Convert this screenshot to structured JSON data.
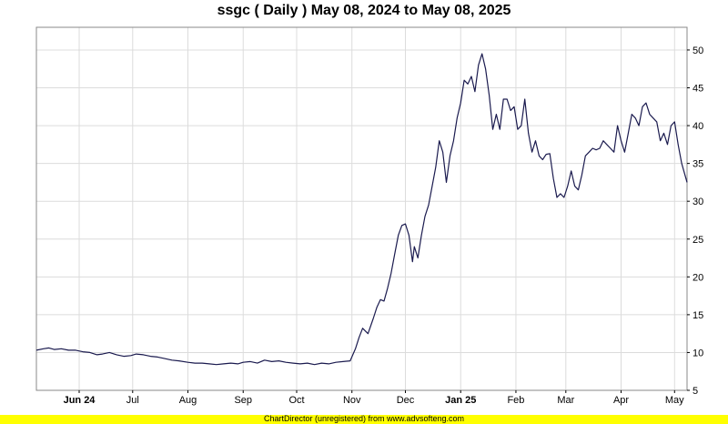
{
  "title": "ssgc ( Daily ) May 08, 2024 to May 08, 2025",
  "footer": "ChartDirector (unregistered) from www.advsofteng.com",
  "colors": {
    "line": "#1a1a4e",
    "grid": "#dcdcdc",
    "footer_bg": "#ffff00",
    "plot_border": "#888888"
  },
  "chart_data": {
    "type": "line",
    "title": "ssgc ( Daily ) May 08, 2024 to May 08, 2025",
    "xlabel": "",
    "ylabel": "",
    "ylim": [
      5,
      53
    ],
    "xlim": [
      "2024-05-08",
      "2025-05-08"
    ],
    "y_ticks": [
      5,
      10,
      15,
      20,
      25,
      30,
      35,
      40,
      45,
      50
    ],
    "x_ticks": [
      {
        "date": "2024-06-01",
        "label": "Jun 24",
        "bold": true
      },
      {
        "date": "2024-07-01",
        "label": "Jul",
        "bold": false
      },
      {
        "date": "2024-08-01",
        "label": "Aug",
        "bold": false
      },
      {
        "date": "2024-09-01",
        "label": "Sep",
        "bold": false
      },
      {
        "date": "2024-10-01",
        "label": "Oct",
        "bold": false
      },
      {
        "date": "2024-11-01",
        "label": "Nov",
        "bold": false
      },
      {
        "date": "2024-12-01",
        "label": "Dec",
        "bold": false
      },
      {
        "date": "2025-01-01",
        "label": "Jan 25",
        "bold": true
      },
      {
        "date": "2025-02-01",
        "label": "Feb",
        "bold": false
      },
      {
        "date": "2025-03-01",
        "label": "Mar",
        "bold": false
      },
      {
        "date": "2025-04-01",
        "label": "Apr",
        "bold": false
      },
      {
        "date": "2025-05-01",
        "label": "May",
        "bold": false
      }
    ],
    "grid": true,
    "y_axis_position": "right",
    "series": [
      {
        "points": [
          [
            "2024-05-08",
            10.3
          ],
          [
            "2024-05-12",
            10.5
          ],
          [
            "2024-05-15",
            10.6
          ],
          [
            "2024-05-18",
            10.4
          ],
          [
            "2024-05-22",
            10.5
          ],
          [
            "2024-05-26",
            10.3
          ],
          [
            "2024-05-30",
            10.3
          ],
          [
            "2024-06-03",
            10.1
          ],
          [
            "2024-06-07",
            10.0
          ],
          [
            "2024-06-11",
            9.7
          ],
          [
            "2024-06-14",
            9.8
          ],
          [
            "2024-06-18",
            10.0
          ],
          [
            "2024-06-22",
            9.7
          ],
          [
            "2024-06-26",
            9.5
          ],
          [
            "2024-06-30",
            9.6
          ],
          [
            "2024-07-03",
            9.8
          ],
          [
            "2024-07-07",
            9.7
          ],
          [
            "2024-07-11",
            9.5
          ],
          [
            "2024-07-15",
            9.4
          ],
          [
            "2024-07-19",
            9.2
          ],
          [
            "2024-07-23",
            9.0
          ],
          [
            "2024-07-27",
            8.9
          ],
          [
            "2024-08-01",
            8.7
          ],
          [
            "2024-08-05",
            8.6
          ],
          [
            "2024-08-09",
            8.6
          ],
          [
            "2024-08-13",
            8.5
          ],
          [
            "2024-08-17",
            8.4
          ],
          [
            "2024-08-21",
            8.5
          ],
          [
            "2024-08-25",
            8.6
          ],
          [
            "2024-08-29",
            8.5
          ],
          [
            "2024-09-01",
            8.7
          ],
          [
            "2024-09-05",
            8.8
          ],
          [
            "2024-09-09",
            8.6
          ],
          [
            "2024-09-13",
            9.0
          ],
          [
            "2024-09-17",
            8.8
          ],
          [
            "2024-09-21",
            8.9
          ],
          [
            "2024-09-25",
            8.7
          ],
          [
            "2024-09-29",
            8.6
          ],
          [
            "2024-10-03",
            8.5
          ],
          [
            "2024-10-07",
            8.6
          ],
          [
            "2024-10-11",
            8.4
          ],
          [
            "2024-10-15",
            8.6
          ],
          [
            "2024-10-19",
            8.5
          ],
          [
            "2024-10-23",
            8.7
          ],
          [
            "2024-10-27",
            8.8
          ],
          [
            "2024-10-31",
            8.9
          ],
          [
            "2024-11-03",
            10.5
          ],
          [
            "2024-11-05",
            12.0
          ],
          [
            "2024-11-07",
            13.2
          ],
          [
            "2024-11-10",
            12.5
          ],
          [
            "2024-11-13",
            14.5
          ],
          [
            "2024-11-15",
            16.0
          ],
          [
            "2024-11-17",
            17.0
          ],
          [
            "2024-11-19",
            16.8
          ],
          [
            "2024-11-21",
            18.5
          ],
          [
            "2024-11-23",
            20.5
          ],
          [
            "2024-11-25",
            23.0
          ],
          [
            "2024-11-27",
            25.5
          ],
          [
            "2024-11-29",
            26.8
          ],
          [
            "2024-12-01",
            27.0
          ],
          [
            "2024-12-03",
            25.5
          ],
          [
            "2024-12-05",
            22.0
          ],
          [
            "2024-12-06",
            24.0
          ],
          [
            "2024-12-08",
            22.5
          ],
          [
            "2024-12-10",
            25.5
          ],
          [
            "2024-12-12",
            28.0
          ],
          [
            "2024-12-14",
            29.5
          ],
          [
            "2024-12-16",
            32.0
          ],
          [
            "2024-12-18",
            34.5
          ],
          [
            "2024-12-20",
            38.0
          ],
          [
            "2024-12-22",
            36.5
          ],
          [
            "2024-12-24",
            32.5
          ],
          [
            "2024-12-26",
            36.0
          ],
          [
            "2024-12-28",
            38.0
          ],
          [
            "2024-12-30",
            41.0
          ],
          [
            "2025-01-01",
            43.0
          ],
          [
            "2025-01-03",
            46.0
          ],
          [
            "2025-01-05",
            45.5
          ],
          [
            "2025-01-07",
            46.5
          ],
          [
            "2025-01-09",
            44.5
          ],
          [
            "2025-01-11",
            48.0
          ],
          [
            "2025-01-13",
            49.5
          ],
          [
            "2025-01-15",
            47.5
          ],
          [
            "2025-01-17",
            44.0
          ],
          [
            "2025-01-19",
            39.5
          ],
          [
            "2025-01-21",
            41.5
          ],
          [
            "2025-01-23",
            39.5
          ],
          [
            "2025-01-25",
            43.5
          ],
          [
            "2025-01-27",
            43.5
          ],
          [
            "2025-01-29",
            42.0
          ],
          [
            "2025-01-31",
            42.5
          ],
          [
            "2025-02-02",
            39.5
          ],
          [
            "2025-02-04",
            40.0
          ],
          [
            "2025-02-06",
            43.5
          ],
          [
            "2025-02-08",
            39.0
          ],
          [
            "2025-02-10",
            36.5
          ],
          [
            "2025-02-12",
            38.0
          ],
          [
            "2025-02-14",
            36.0
          ],
          [
            "2025-02-16",
            35.5
          ],
          [
            "2025-02-18",
            36.2
          ],
          [
            "2025-02-20",
            36.3
          ],
          [
            "2025-02-22",
            33.0
          ],
          [
            "2025-02-24",
            30.5
          ],
          [
            "2025-02-26",
            31.0
          ],
          [
            "2025-02-28",
            30.5
          ],
          [
            "2025-03-02",
            32.0
          ],
          [
            "2025-03-04",
            34.0
          ],
          [
            "2025-03-06",
            32.0
          ],
          [
            "2025-03-08",
            31.5
          ],
          [
            "2025-03-10",
            33.5
          ],
          [
            "2025-03-12",
            36.0
          ],
          [
            "2025-03-14",
            36.5
          ],
          [
            "2025-03-16",
            37.0
          ],
          [
            "2025-03-18",
            36.8
          ],
          [
            "2025-03-20",
            37.0
          ],
          [
            "2025-03-22",
            38.0
          ],
          [
            "2025-03-24",
            37.5
          ],
          [
            "2025-03-26",
            37.0
          ],
          [
            "2025-03-28",
            36.5
          ],
          [
            "2025-03-30",
            40.0
          ],
          [
            "2025-04-01",
            38.0
          ],
          [
            "2025-04-03",
            36.5
          ],
          [
            "2025-04-05",
            39.0
          ],
          [
            "2025-04-07",
            41.5
          ],
          [
            "2025-04-09",
            41.0
          ],
          [
            "2025-04-11",
            40.0
          ],
          [
            "2025-04-13",
            42.5
          ],
          [
            "2025-04-15",
            43.0
          ],
          [
            "2025-04-17",
            41.5
          ],
          [
            "2025-04-19",
            41.0
          ],
          [
            "2025-04-21",
            40.5
          ],
          [
            "2025-04-23",
            38.0
          ],
          [
            "2025-04-25",
            39.0
          ],
          [
            "2025-04-27",
            37.5
          ],
          [
            "2025-04-29",
            40.0
          ],
          [
            "2025-05-01",
            40.5
          ],
          [
            "2025-05-03",
            37.5
          ],
          [
            "2025-05-05",
            35.0
          ],
          [
            "2025-05-08",
            32.5
          ]
        ]
      }
    ]
  }
}
